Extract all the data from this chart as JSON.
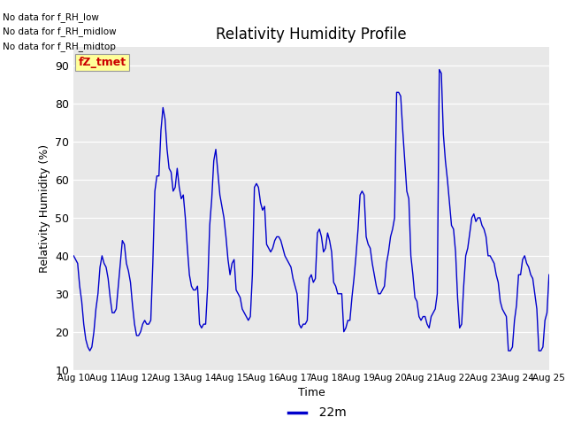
{
  "title": "Relativity Humidity Profile",
  "ylabel": "Relativity Humidity (%)",
  "xlabel": "Time",
  "legend_label": "22m",
  "line_color": "#0000cc",
  "bg_color": "#e8e8e8",
  "ylim": [
    10,
    95
  ],
  "yticks": [
    10,
    20,
    30,
    40,
    50,
    60,
    70,
    80,
    90
  ],
  "no_data_texts": [
    "No data for f_RH_low",
    "No data for f_RH_midlow",
    "No data for f_RH_midtop"
  ],
  "legend_box_color": "#ffff99",
  "legend_text_color": "#cc0000",
  "x_tick_labels": [
    "Aug 10",
    "Aug 11",
    "Aug 12",
    "Aug 13",
    "Aug 14",
    "Aug 15",
    "Aug 16",
    "Aug 17",
    "Aug 18",
    "Aug 19",
    "Aug 20",
    "Aug 21",
    "Aug 22",
    "Aug 23",
    "Aug 24",
    "Aug 25"
  ],
  "humidity_values": [
    40,
    39,
    38,
    32,
    28,
    22,
    18,
    16,
    15,
    16,
    20,
    26,
    30,
    37,
    40,
    38,
    37,
    34,
    29,
    25,
    25,
    26,
    32,
    38,
    44,
    43,
    38,
    36,
    33,
    27,
    22,
    19,
    19,
    20,
    22,
    23,
    22,
    22,
    23,
    38,
    57,
    61,
    61,
    73,
    79,
    76,
    68,
    63,
    62,
    57,
    58,
    63,
    58,
    55,
    56,
    50,
    42,
    35,
    32,
    31,
    31,
    32,
    22,
    21,
    22,
    22,
    32,
    48,
    55,
    65,
    68,
    62,
    56,
    53,
    50,
    45,
    39,
    35,
    38,
    39,
    31,
    30,
    29,
    26,
    25,
    24,
    23,
    24,
    35,
    58,
    59,
    58,
    54,
    52,
    53,
    43,
    42,
    41,
    42,
    44,
    45,
    45,
    44,
    42,
    40,
    39,
    38,
    37,
    34,
    32,
    30,
    22,
    21,
    22,
    22,
    23,
    34,
    35,
    33,
    34,
    46,
    47,
    45,
    41,
    42,
    46,
    44,
    41,
    33,
    32,
    30,
    30,
    30,
    20,
    21,
    23,
    23,
    29,
    34,
    40,
    47,
    56,
    57,
    56,
    45,
    43,
    42,
    38,
    35,
    32,
    30,
    30,
    31,
    32,
    38,
    41,
    45,
    47,
    50,
    83,
    83,
    82,
    73,
    65,
    57,
    55,
    40,
    35,
    29,
    28,
    24,
    23,
    24,
    24,
    22,
    21,
    24,
    25,
    26,
    30,
    89,
    88,
    72,
    65,
    60,
    54,
    48,
    47,
    41,
    29,
    21,
    22,
    32,
    40,
    42,
    46,
    50,
    51,
    49,
    50,
    50,
    48,
    47,
    45,
    40,
    40,
    39,
    38,
    35,
    33,
    28,
    26,
    25,
    24,
    15,
    15,
    16,
    23,
    27,
    35,
    35,
    39,
    40,
    38,
    37,
    35,
    34,
    30,
    26,
    15,
    15,
    16,
    23,
    25,
    35
  ]
}
